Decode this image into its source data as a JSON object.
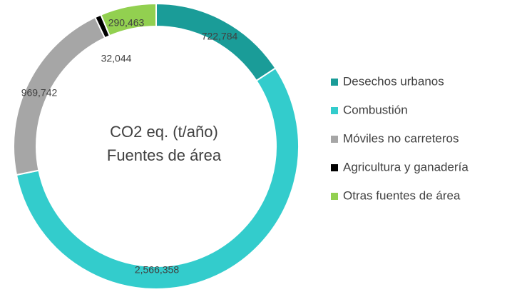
{
  "chart_data": {
    "type": "pie",
    "title": "CO2 eq. (t/año)",
    "subtitle": "Fuentes de área",
    "categories": [
      "Desechos urbanos",
      "Combustión",
      "Móviles no carreteros",
      "Agricultura y ganadería",
      "Otras fuentes de área"
    ],
    "values": [
      722784,
      2566358,
      969742,
      32044,
      290463
    ],
    "value_labels": [
      "722,784",
      "2,566,358",
      "969,742",
      "32,044",
      "290,463"
    ],
    "colors": [
      "#1a9c98",
      "#33cccc",
      "#a6a6a6",
      "#000000",
      "#92d050"
    ],
    "legend": "right"
  }
}
